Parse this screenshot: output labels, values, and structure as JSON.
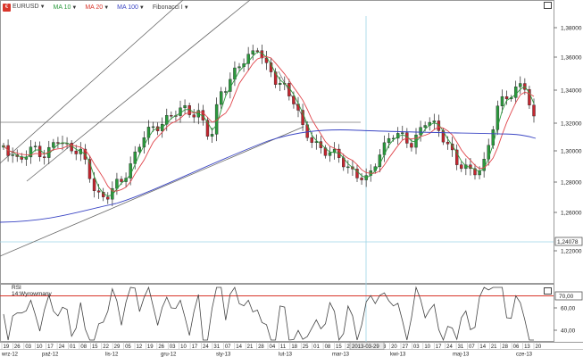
{
  "toolbar": {
    "symbol": "EURUSD",
    "ma10": "MA 10",
    "ma20": "MA 20",
    "ma100": "MA 100",
    "fibonacci": "Fibonacci",
    "fibonacci_marker": "I"
  },
  "price_axis": {
    "ticks": [
      "1,38000",
      "1,36000",
      "1,34000",
      "1,32000",
      "1,30000",
      "1,28000",
      "1,26000",
      "1,22000"
    ],
    "current_value": "1,24078"
  },
  "rsi_panel": {
    "title": "RSI",
    "params": "14;Wyrowmany",
    "ticks": [
      "60,00",
      "40,00"
    ],
    "level": "70,00"
  },
  "date_axis": {
    "days": [
      "19",
      "26",
      "03",
      "10",
      "17",
      "24",
      "01",
      "08",
      "15",
      "22",
      "29",
      "05",
      "12",
      "19",
      "26",
      "03",
      "10",
      "17",
      "24",
      "31",
      "07",
      "14",
      "21",
      "28",
      "04",
      "11",
      "18",
      "25",
      "01",
      "08",
      "15",
      "22",
      "29",
      "06",
      "13",
      "20",
      "27",
      "03",
      "10",
      "17",
      "24",
      "31",
      "07",
      "14",
      "21",
      "28",
      "06",
      "13",
      "20"
    ],
    "months": [
      "wrz-12",
      "paź-12",
      "lis-12",
      "gru-12",
      "sty-13",
      "lut-13",
      "mar-13",
      "kwi-13",
      "maj-13",
      "cze-13"
    ],
    "cursor_date": "2013-03-29"
  },
  "colors": {
    "bull": "#2b9a3d",
    "bear": "#c4262f",
    "ma10": "#2b9a3d",
    "ma20": "#e0454b",
    "ma100": "#3b46c4",
    "rsi_level": "#d9362b"
  }
}
